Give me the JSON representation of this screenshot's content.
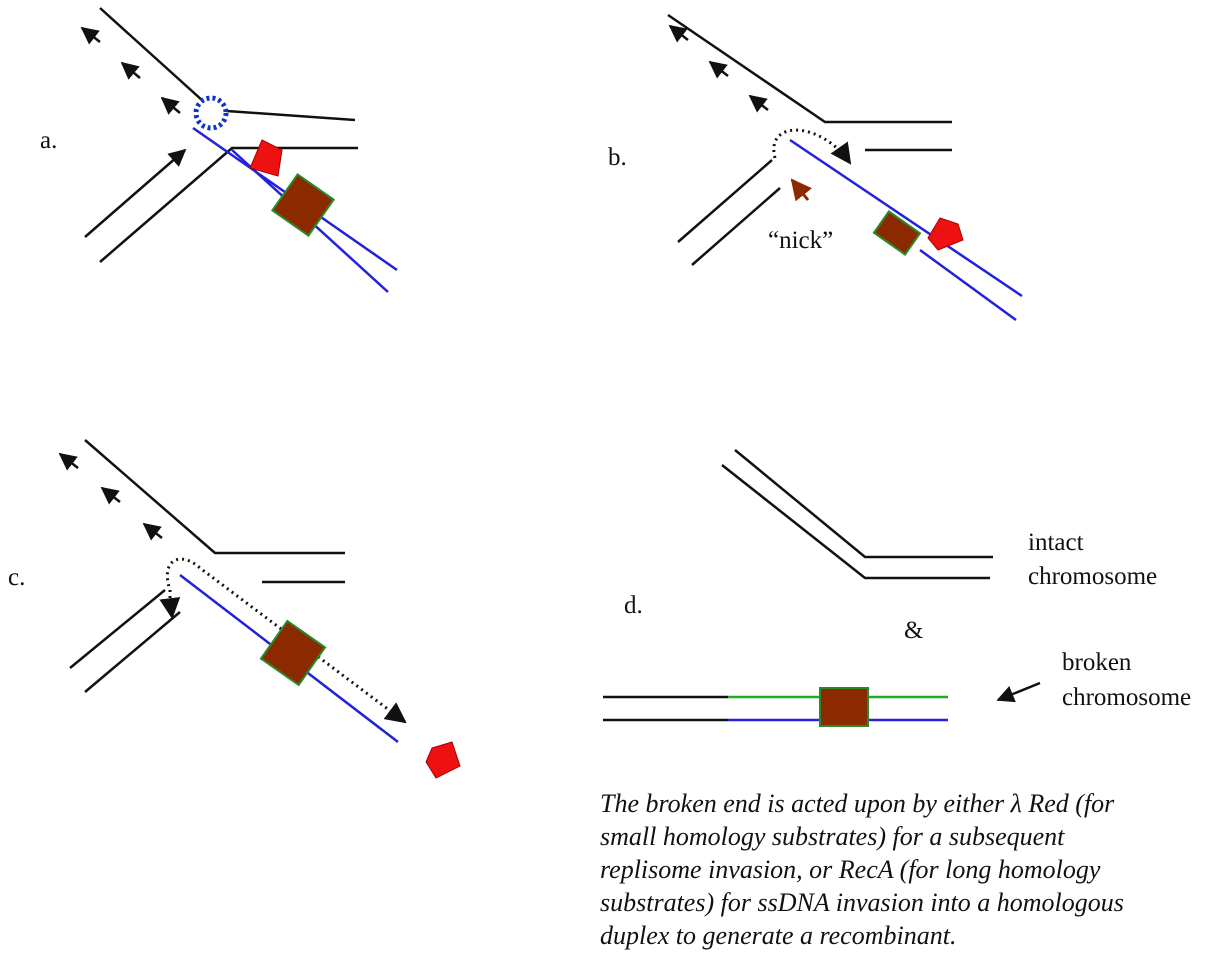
{
  "panels": [
    {
      "label": "a."
    },
    {
      "label": "b.",
      "annotation": "“nick”"
    },
    {
      "label": "c."
    },
    {
      "label": "d.",
      "top_label": [
        "intact",
        "chromosome"
      ],
      "joiner": "&",
      "bottom_label": [
        "broken",
        "chromosome"
      ]
    }
  ],
  "caption": [
    "The broken end is acted upon by either λ Red (for",
    "small homology substrates) for a subsequent",
    "replisome invasion, or RecA (for long homology",
    "substrates) for ssDNA invasion into a homologous",
    "duplex to generate a recombinant."
  ]
}
